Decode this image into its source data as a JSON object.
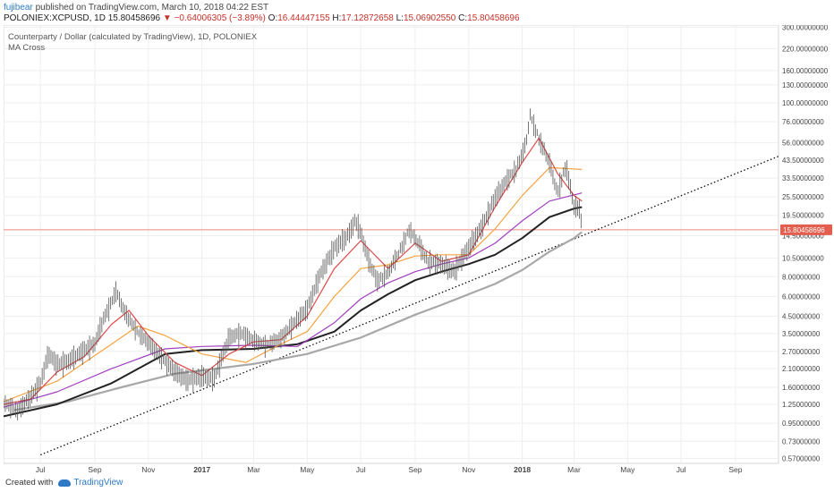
{
  "header": {
    "user": "fujibear",
    "published": "published on TradingView.com, March 10, 2018 04:22 EST",
    "symbol": "POLONIEX:XCPUSD, 1D",
    "price": "15.80458696",
    "change_arrow": "▼",
    "change": "−0.64006305 (−3.89%)",
    "o_label": "O:",
    "o": "16.44447155",
    "h_label": "H:",
    "h": "17.12872658",
    "l_label": "L:",
    "l": "15.06902550",
    "c_label": "C:",
    "c": "15.80458696"
  },
  "legend": {
    "title": "Counterparty / Dollar (calculated by TradingView), 1D, POLONIEX",
    "indicator": "MA Cross"
  },
  "footer": {
    "created_with": "Created with",
    "brand": "TradingView"
  },
  "colors": {
    "candle": "#555555",
    "ma_red": "#e04848",
    "ma_orange": "#f5a340",
    "ma_purple": "#a23fc0",
    "ma_black": "#222222",
    "ma_gray": "#a8a8a8",
    "price_line": "#e98a7d",
    "price_badge": "#e35e4e",
    "trendline": "#000000"
  },
  "chart_data": {
    "type": "line",
    "scale": "log",
    "y_ticks": [
      "300.00000000",
      "220.00000000",
      "160.00000000",
      "130.00000000",
      "100.00000000",
      "76.00000000",
      "56.00000000",
      "43.50000000",
      "33.50000000",
      "25.50000000",
      "19.50000000",
      "14.50000000",
      "10.50000000",
      "8.00000000",
      "6.00000000",
      "4.50000000",
      "3.50000000",
      "2.70000000",
      "2.10000000",
      "1.60000000",
      "1.25000000",
      "0.95000000",
      "0.73000000",
      "0.57000000"
    ],
    "x_ticks": [
      "Jul",
      "Sep",
      "Nov",
      "2017",
      "Mar",
      "May",
      "Jul",
      "Sep",
      "Nov",
      "2018",
      "Mar",
      "May",
      "Jul",
      "Sep"
    ],
    "x_tick_dates": [
      "2016-07-01",
      "2016-09-01",
      "2016-11-01",
      "2017-01-01",
      "2017-03-01",
      "2017-05-01",
      "2017-07-01",
      "2017-09-01",
      "2017-11-01",
      "2018-01-01",
      "2018-03-01",
      "2018-05-01",
      "2018-07-01",
      "2018-09-01"
    ],
    "x_range": [
      "2016-05-20",
      "2018-10-20"
    ],
    "y_range": [
      0.53,
      310
    ],
    "last_price": 15.80458696,
    "last_price_label": "15.80458696",
    "series": [
      {
        "key": "price",
        "type": "candlestick",
        "values": [
          [
            "2016-05-20",
            1.3
          ],
          [
            "2016-06-05",
            1.15
          ],
          [
            "2016-06-20",
            1.4
          ],
          [
            "2016-07-01",
            1.7
          ],
          [
            "2016-07-10",
            2.6
          ],
          [
            "2016-07-20",
            2.2
          ],
          [
            "2016-08-01",
            2.3
          ],
          [
            "2016-08-15",
            2.6
          ],
          [
            "2016-09-01",
            3.0
          ],
          [
            "2016-09-10",
            4.2
          ],
          [
            "2016-09-20",
            5.5
          ],
          [
            "2016-09-25",
            6.5
          ],
          [
            "2016-10-05",
            4.8
          ],
          [
            "2016-10-20",
            3.6
          ],
          [
            "2016-11-01",
            3.1
          ],
          [
            "2016-11-15",
            2.5
          ],
          [
            "2016-12-01",
            2.0
          ],
          [
            "2016-12-15",
            1.75
          ],
          [
            "2017-01-01",
            1.85
          ],
          [
            "2017-01-15",
            1.8
          ],
          [
            "2017-02-01",
            3.3
          ],
          [
            "2017-02-15",
            3.5
          ],
          [
            "2017-03-01",
            3.2
          ],
          [
            "2017-03-15",
            3.0
          ],
          [
            "2017-04-01",
            3.3
          ],
          [
            "2017-04-15",
            4.0
          ],
          [
            "2017-05-01",
            5.0
          ],
          [
            "2017-05-15",
            8.0
          ],
          [
            "2017-06-01",
            12.0
          ],
          [
            "2017-06-15",
            14.0
          ],
          [
            "2017-06-25",
            18.0
          ],
          [
            "2017-07-01",
            15.0
          ],
          [
            "2017-07-10",
            10.0
          ],
          [
            "2017-07-20",
            7.5
          ],
          [
            "2017-08-01",
            8.5
          ],
          [
            "2017-08-15",
            12.0
          ],
          [
            "2017-08-25",
            16.0
          ],
          [
            "2017-09-05",
            13.0
          ],
          [
            "2017-09-15",
            10.0
          ],
          [
            "2017-10-01",
            9.5
          ],
          [
            "2017-10-15",
            8.5
          ],
          [
            "2017-11-01",
            12.0
          ],
          [
            "2017-11-15",
            16.0
          ],
          [
            "2017-12-01",
            25.0
          ],
          [
            "2017-12-15",
            33.0
          ],
          [
            "2017-12-25",
            38.0
          ],
          [
            "2018-01-05",
            55.0
          ],
          [
            "2018-01-10",
            85.0
          ],
          [
            "2018-01-20",
            60.0
          ],
          [
            "2018-02-01",
            42.0
          ],
          [
            "2018-02-10",
            27.0
          ],
          [
            "2018-02-20",
            40.0
          ],
          [
            "2018-03-01",
            22.0
          ],
          [
            "2018-03-08",
            21.0
          ],
          [
            "2018-03-10",
            15.8
          ]
        ]
      },
      {
        "key": "ma_red",
        "values": [
          [
            "2016-05-20",
            1.25
          ],
          [
            "2016-06-20",
            1.35
          ],
          [
            "2016-07-20",
            2.0
          ],
          [
            "2016-08-20",
            2.5
          ],
          [
            "2016-09-20",
            4.0
          ],
          [
            "2016-10-10",
            4.9
          ],
          [
            "2016-11-01",
            3.4
          ],
          [
            "2016-12-01",
            2.3
          ],
          [
            "2017-01-01",
            1.9
          ],
          [
            "2017-02-01",
            2.6
          ],
          [
            "2017-03-01",
            3.1
          ],
          [
            "2017-04-01",
            3.2
          ],
          [
            "2017-05-01",
            4.5
          ],
          [
            "2017-06-01",
            9.0
          ],
          [
            "2017-07-01",
            13.5
          ],
          [
            "2017-08-01",
            9.0
          ],
          [
            "2017-09-01",
            13.0
          ],
          [
            "2017-10-01",
            10.0
          ],
          [
            "2017-11-01",
            11.0
          ],
          [
            "2017-12-01",
            22.0
          ],
          [
            "2018-01-01",
            42.0
          ],
          [
            "2018-01-20",
            60.0
          ],
          [
            "2018-02-10",
            36.0
          ],
          [
            "2018-03-01",
            26.0
          ],
          [
            "2018-03-10",
            24.0
          ]
        ]
      },
      {
        "key": "ma_orange",
        "values": [
          [
            "2016-05-20",
            1.3
          ],
          [
            "2016-07-20",
            1.75
          ],
          [
            "2016-09-20",
            3.0
          ],
          [
            "2016-10-20",
            3.9
          ],
          [
            "2016-11-20",
            3.4
          ],
          [
            "2017-01-01",
            2.6
          ],
          [
            "2017-02-20",
            2.3
          ],
          [
            "2017-04-01",
            3.0
          ],
          [
            "2017-05-01",
            3.6
          ],
          [
            "2017-06-01",
            6.0
          ],
          [
            "2017-07-01",
            9.0
          ],
          [
            "2017-08-01",
            9.5
          ],
          [
            "2017-09-01",
            10.8
          ],
          [
            "2017-10-01",
            11.0
          ],
          [
            "2017-11-01",
            11.0
          ],
          [
            "2017-12-01",
            16.0
          ],
          [
            "2018-01-01",
            26.0
          ],
          [
            "2018-02-01",
            39.0
          ],
          [
            "2018-03-10",
            38.0
          ]
        ]
      },
      {
        "key": "ma_purple",
        "values": [
          [
            "2016-05-20",
            1.2
          ],
          [
            "2016-07-20",
            1.5
          ],
          [
            "2016-09-20",
            2.1
          ],
          [
            "2016-11-20",
            2.8
          ],
          [
            "2017-01-01",
            2.9
          ],
          [
            "2017-03-01",
            2.95
          ],
          [
            "2017-04-20",
            2.9
          ],
          [
            "2017-06-01",
            4.1
          ],
          [
            "2017-07-01",
            5.8
          ],
          [
            "2017-08-01",
            7.3
          ],
          [
            "2017-09-01",
            8.6
          ],
          [
            "2017-10-01",
            9.6
          ],
          [
            "2017-11-01",
            10.5
          ],
          [
            "2017-12-01",
            13.0
          ],
          [
            "2018-01-01",
            18.0
          ],
          [
            "2018-02-01",
            24.0
          ],
          [
            "2018-03-10",
            27.0
          ]
        ]
      },
      {
        "key": "ma_black",
        "values": [
          [
            "2016-05-20",
            1.05
          ],
          [
            "2016-07-20",
            1.25
          ],
          [
            "2016-09-20",
            1.7
          ],
          [
            "2016-11-20",
            2.6
          ],
          [
            "2017-01-01",
            2.75
          ],
          [
            "2017-03-01",
            2.8
          ],
          [
            "2017-04-20",
            3.0
          ],
          [
            "2017-06-01",
            3.6
          ],
          [
            "2017-07-01",
            4.9
          ],
          [
            "2017-08-01",
            6.2
          ],
          [
            "2017-09-01",
            7.6
          ],
          [
            "2017-10-01",
            8.6
          ],
          [
            "2017-11-01",
            9.6
          ],
          [
            "2017-12-01",
            11.0
          ],
          [
            "2018-01-01",
            14.0
          ],
          [
            "2018-02-01",
            19.0
          ],
          [
            "2018-03-01",
            21.5
          ],
          [
            "2018-03-10",
            22.0
          ]
        ]
      },
      {
        "key": "ma_gray",
        "values": [
          [
            "2016-06-01",
            1.15
          ],
          [
            "2016-08-01",
            1.3
          ],
          [
            "2016-10-01",
            1.6
          ],
          [
            "2016-12-01",
            1.95
          ],
          [
            "2017-01-01",
            2.05
          ],
          [
            "2017-03-01",
            2.25
          ],
          [
            "2017-05-01",
            2.6
          ],
          [
            "2017-07-01",
            3.3
          ],
          [
            "2017-09-01",
            4.6
          ],
          [
            "2017-10-01",
            5.3
          ],
          [
            "2017-11-01",
            6.2
          ],
          [
            "2017-12-01",
            7.2
          ],
          [
            "2018-01-01",
            8.8
          ],
          [
            "2018-02-01",
            11.5
          ],
          [
            "2018-03-01",
            14.0
          ],
          [
            "2018-03-10",
            15.3
          ]
        ]
      },
      {
        "key": "trendline",
        "style": "dotted",
        "values": [
          [
            "2016-07-01",
            0.6
          ],
          [
            "2018-10-20",
            46.0
          ]
        ]
      }
    ]
  }
}
